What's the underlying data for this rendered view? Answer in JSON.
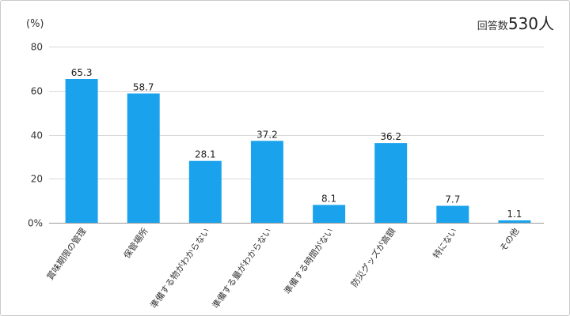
{
  "header": {
    "unit": "(%)",
    "respondents_label": "回答数",
    "respondents_count": "530人"
  },
  "chart_data": {
    "type": "bar",
    "title": "",
    "xlabel": "",
    "ylabel": "(%)",
    "ylim": [
      0,
      80
    ],
    "yticks": [
      "0%",
      "20",
      "40",
      "60",
      "80"
    ],
    "grid": true,
    "bar_color": "#1aa3ec",
    "categories": [
      "賞味期限の管理",
      "保管場所",
      "準備する物がわからない",
      "準備する量がわからない",
      "準備する時間がない",
      "防災グッズが高額",
      "特にない",
      "その他"
    ],
    "values": [
      65.3,
      58.7,
      28.1,
      37.2,
      8.1,
      36.2,
      7.7,
      1.1
    ],
    "value_labels": [
      "65.3",
      "58.7",
      "28.1",
      "37.2",
      "8.1",
      "36.2",
      "7.7",
      "1.1"
    ]
  }
}
